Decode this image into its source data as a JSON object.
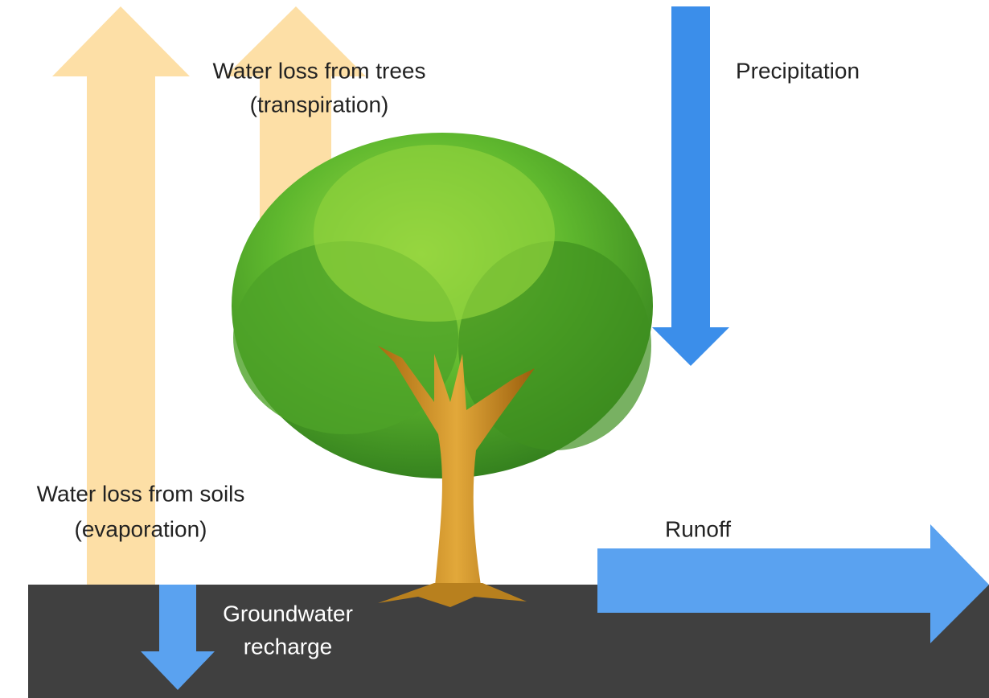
{
  "labels": {
    "transpiration": {
      "line1": "Water loss from trees",
      "line2": "(transpiration)"
    },
    "precipitation": "Precipitation",
    "evaporation": {
      "line1": "Water loss from soils",
      "line2": "(evaporation)"
    },
    "runoff": "Runoff",
    "groundwater": {
      "line1": "Groundwater",
      "line2": "recharge"
    }
  }
}
